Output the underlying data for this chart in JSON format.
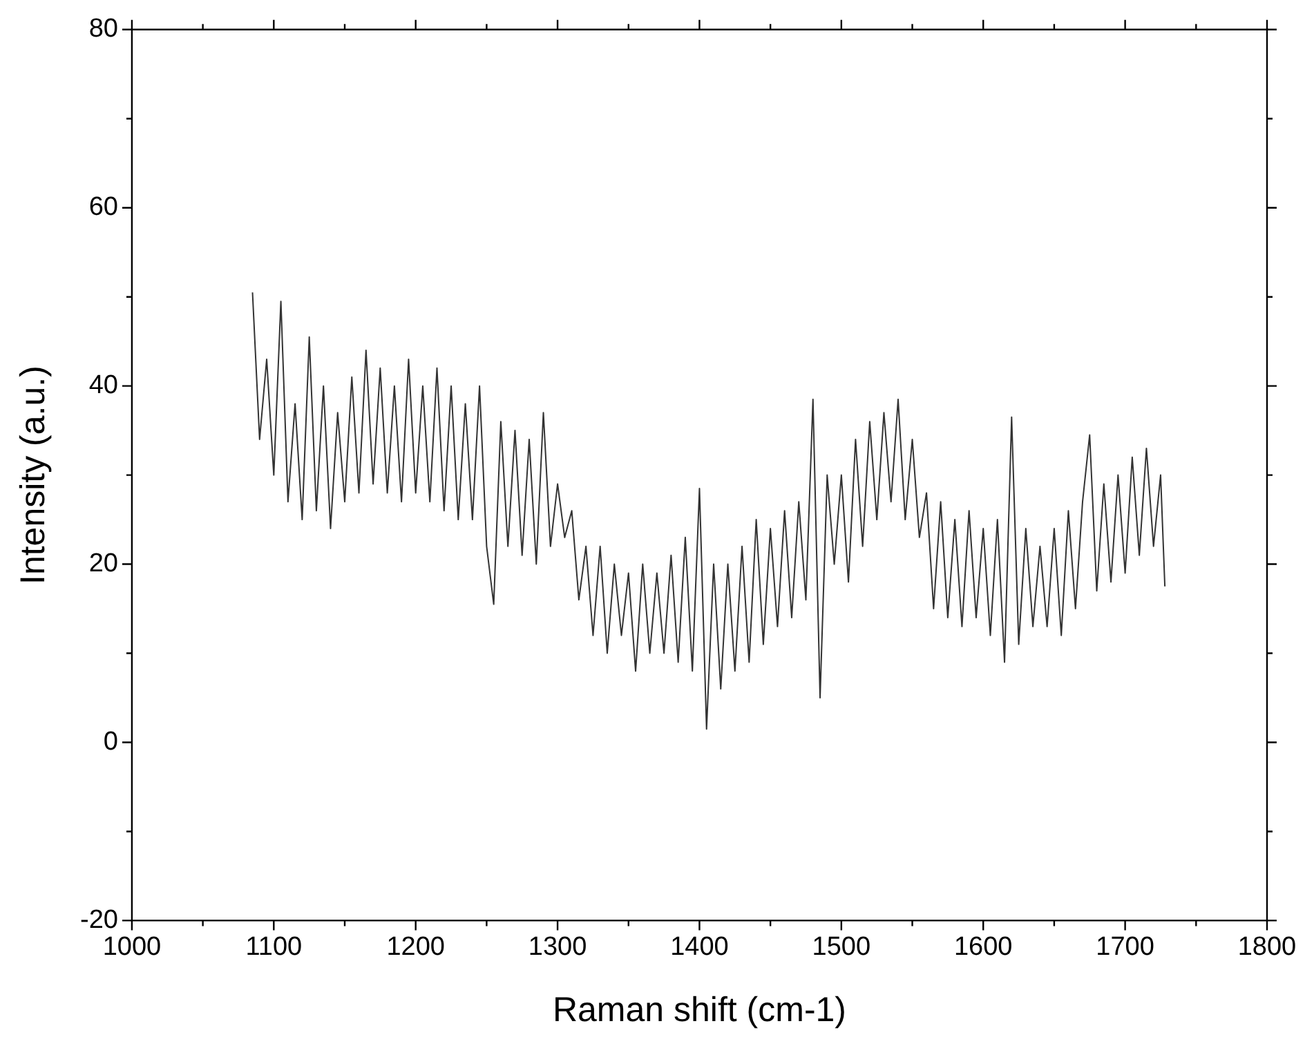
{
  "chart_data": {
    "type": "line",
    "xlabel": "Raman shift (cm-1)",
    "ylabel": "Intensity (a.u.)",
    "xlim": [
      1000,
      1800
    ],
    "ylim": [
      -20,
      80
    ],
    "xticks": [
      1000,
      {
        "value": 1050,
        "label": null
      },
      1100,
      {
        "value": 1150,
        "label": null
      },
      1200,
      {
        "value": 1250,
        "label": null
      },
      1300,
      {
        "value": 1350,
        "label": null
      },
      1400,
      {
        "value": 1450,
        "label": null
      },
      1500,
      {
        "value": 1550,
        "label": null
      },
      1600,
      {
        "value": 1650,
        "label": null
      },
      1700,
      {
        "value": 1750,
        "label": null
      },
      1800
    ],
    "yticks": [
      -20,
      {
        "value": -10,
        "label": null
      },
      0,
      {
        "value": 10,
        "label": null
      },
      20,
      {
        "value": 30,
        "label": null
      },
      40,
      {
        "value": 50,
        "label": null
      },
      60,
      {
        "value": 70,
        "label": null
      },
      80
    ],
    "grid": false,
    "legend": false,
    "marker": "none",
    "line_style": "solid",
    "series": [
      {
        "color": "#333333",
        "x": [
          1085,
          1090,
          1095,
          1100,
          1105,
          1110,
          1115,
          1120,
          1125,
          1130,
          1135,
          1140,
          1145,
          1150,
          1155,
          1160,
          1165,
          1170,
          1175,
          1180,
          1185,
          1190,
          1195,
          1200,
          1205,
          1210,
          1215,
          1220,
          1225,
          1230,
          1235,
          1240,
          1245,
          1250,
          1255,
          1260,
          1265,
          1270,
          1275,
          1280,
          1285,
          1290,
          1295,
          1300,
          1305,
          1310,
          1315,
          1320,
          1325,
          1330,
          1335,
          1340,
          1345,
          1350,
          1355,
          1360,
          1365,
          1370,
          1375,
          1380,
          1385,
          1390,
          1395,
          1400,
          1405,
          1410,
          1415,
          1420,
          1425,
          1430,
          1435,
          1440,
          1445,
          1450,
          1455,
          1460,
          1465,
          1470,
          1475,
          1480,
          1485,
          1490,
          1495,
          1500,
          1505,
          1510,
          1515,
          1520,
          1525,
          1530,
          1535,
          1540,
          1545,
          1550,
          1555,
          1560,
          1565,
          1570,
          1575,
          1580,
          1585,
          1590,
          1595,
          1600,
          1605,
          1610,
          1615,
          1620,
          1625,
          1630,
          1635,
          1640,
          1645,
          1650,
          1655,
          1660,
          1665,
          1670,
          1675,
          1680,
          1685,
          1690,
          1695,
          1700,
          1705,
          1710,
          1715,
          1720,
          1725,
          1728
        ],
        "values": [
          50.5,
          34,
          43,
          30,
          49.5,
          27,
          38,
          25,
          45.5,
          26,
          40,
          24,
          37,
          27,
          41,
          28,
          44,
          29,
          42,
          28,
          40,
          27,
          43,
          28,
          40,
          27,
          42,
          26,
          40,
          25,
          38,
          25,
          40,
          22,
          15.5,
          36,
          22,
          35,
          21,
          34,
          20,
          37,
          22,
          29,
          23,
          26,
          16,
          22,
          12,
          22,
          10,
          20,
          12,
          19,
          8,
          20,
          10,
          19,
          10,
          21,
          9,
          23,
          8,
          28.5,
          1.5,
          20,
          6,
          20,
          8,
          22,
          9,
          25,
          11,
          24,
          13,
          26,
          14,
          27,
          16,
          38.5,
          5,
          30,
          20,
          30,
          18,
          34,
          22,
          36,
          25,
          37,
          27,
          38.5,
          25,
          34,
          23,
          28,
          15,
          27,
          14,
          25,
          13,
          26,
          14,
          24,
          12,
          25,
          9,
          36.5,
          11,
          24,
          13,
          22,
          13,
          24,
          12,
          26,
          15,
          27,
          34.5,
          17,
          29,
          18,
          30,
          19,
          32,
          21,
          33,
          22,
          30,
          17.5
        ]
      }
    ]
  }
}
